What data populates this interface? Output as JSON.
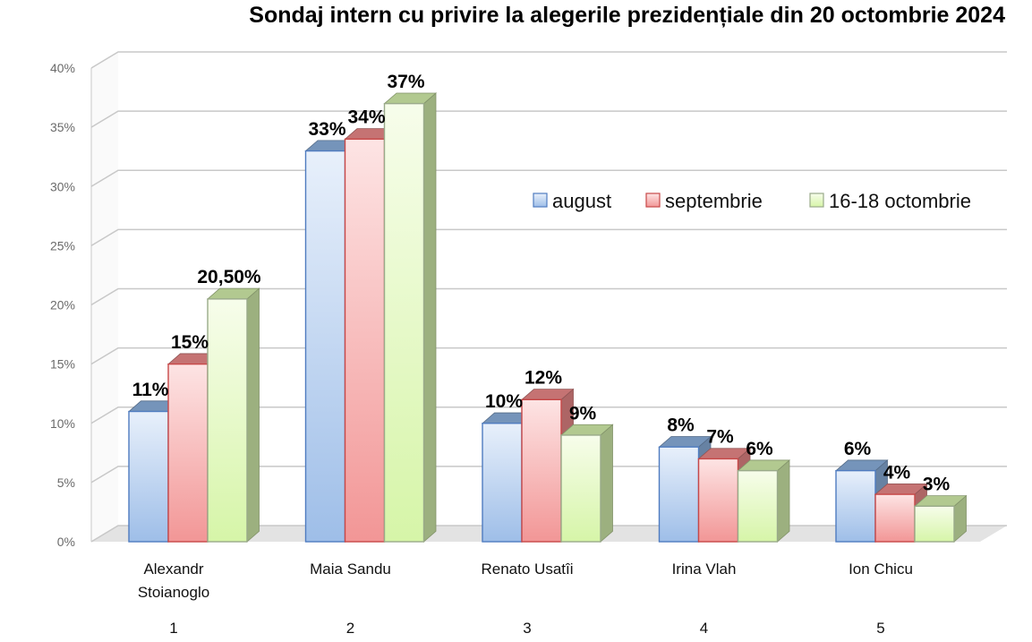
{
  "chart_data": {
    "type": "bar",
    "title": "Sondaj intern cu privire la alegerile prezidențiale  din 20 octombrie 2024",
    "categories": [
      [
        "Alexandr",
        "Stoianoglo"
      ],
      [
        "Maia Sandu"
      ],
      [
        "Renato Usatîi"
      ],
      [
        "Irina Vlah"
      ],
      [
        "Ion Chicu"
      ]
    ],
    "category_numbers": [
      "1",
      "2",
      "3",
      "4",
      "5"
    ],
    "series": [
      {
        "name": "august",
        "values": [
          11,
          33,
          10,
          8,
          6
        ],
        "labels": [
          "11%",
          "33%",
          "10%",
          "8%",
          "6%"
        ],
        "color": "#8fb4e3"
      },
      {
        "name": "septembrie",
        "values": [
          15,
          34,
          12,
          7,
          4
        ],
        "labels": [
          "15%",
          "34%",
          "12%",
          "7%",
          "4%"
        ],
        "color": "#f08c8c"
      },
      {
        "name": "16-18 octombrie",
        "values": [
          20.5,
          37,
          9,
          6,
          3
        ],
        "labels": [
          "20,50%",
          "37%",
          "9%",
          "6%",
          "3%"
        ],
        "color": "#d9f5b0"
      }
    ],
    "yticks": [
      "0%",
      "5%",
      "10%",
      "15%",
      "20%",
      "25%",
      "30%",
      "35%",
      "40%"
    ],
    "ylim": [
      0,
      40
    ],
    "xlabel": "",
    "ylabel": "",
    "legend": "right, inside plot",
    "grid": true
  }
}
